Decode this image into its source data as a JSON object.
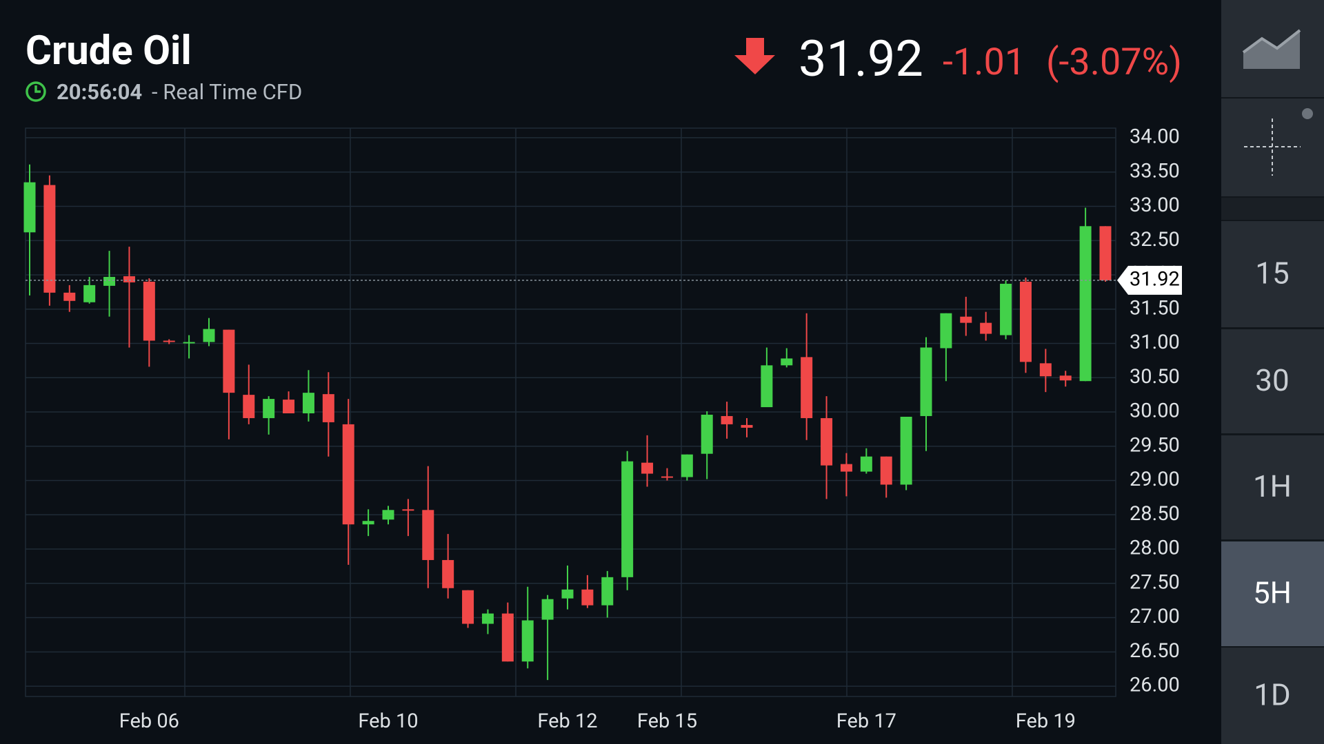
{
  "header": {
    "title": "Crude Oil",
    "time": "20:56:04",
    "source": "- Real Time CFD",
    "change": "-1.01",
    "change_percent": "(-3.07%)"
  },
  "sidebar": {
    "intervals": [
      "15",
      "30",
      "1H",
      "5H",
      "1D"
    ],
    "selected_index": 3
  },
  "chart_data": {
    "type": "candlestick",
    "categories": [
      null,
      null,
      null,
      null,
      null,
      null,
      "Feb 06",
      null,
      null,
      null,
      null,
      null,
      null,
      null,
      null,
      null,
      null,
      null,
      "Feb 10",
      null,
      null,
      null,
      null,
      null,
      null,
      null,
      null,
      "Feb 12",
      null,
      null,
      null,
      null,
      "Feb 15",
      null,
      null,
      null,
      null,
      null,
      null,
      null,
      null,
      null,
      "Feb 17",
      null,
      null,
      null,
      null,
      null,
      null,
      null,
      null,
      "Feb 19",
      null,
      null,
      null
    ],
    "open": [
      32.62,
      33.31,
      31.74,
      31.6,
      31.84,
      31.98,
      31.9,
      31.04,
      31.01,
      31.02,
      31.2,
      30.25,
      29.91,
      30.18,
      29.98,
      30.26,
      29.82,
      28.36,
      28.43,
      28.58,
      28.57,
      27.84,
      27.4,
      26.91,
      27.06,
      26.36,
      26.97,
      27.28,
      27.41,
      27.18,
      27.59,
      29.26,
      29.06,
      29.05,
      29.39,
      29.94,
      29.81,
      30.07,
      30.68,
      30.8,
      29.91,
      29.24,
      29.13,
      29.35,
      28.94,
      29.94,
      30.93,
      31.39,
      31.3,
      31.12,
      31.9,
      30.71,
      30.53,
      30.45,
      32.71
    ],
    "high": [
      33.61,
      33.45,
      31.85,
      31.97,
      32.35,
      32.41,
      31.95,
      31.06,
      31.12,
      31.37,
      31.2,
      30.69,
      30.23,
      30.3,
      30.61,
      30.58,
      30.19,
      28.58,
      28.63,
      28.73,
      29.21,
      28.22,
      27.4,
      27.12,
      27.22,
      27.45,
      27.33,
      27.76,
      27.62,
      27.68,
      29.43,
      29.66,
      29.18,
      29.38,
      30.01,
      30.15,
      29.91,
      30.94,
      30.93,
      31.44,
      30.23,
      29.4,
      29.47,
      29.35,
      29.93,
      31.09,
      31.44,
      31.68,
      31.46,
      31.92,
      31.96,
      30.92,
      30.6,
      32.98,
      32.71
    ],
    "low": [
      31.7,
      31.55,
      31.46,
      31.58,
      31.39,
      30.94,
      30.66,
      30.99,
      30.78,
      30.96,
      29.6,
      29.82,
      29.67,
      29.98,
      29.86,
      29.35,
      27.77,
      28.19,
      28.36,
      28.19,
      27.43,
      27.28,
      26.85,
      26.76,
      26.36,
      26.26,
      26.09,
      27.12,
      27.14,
      27.0,
      27.4,
      28.91,
      29.0,
      29.0,
      29.02,
      29.61,
      29.63,
      30.07,
      30.65,
      29.59,
      28.73,
      28.77,
      29.1,
      28.75,
      28.86,
      29.43,
      30.45,
      31.11,
      31.04,
      31.06,
      30.57,
      30.29,
      30.37,
      30.45,
      31.9
    ],
    "close": [
      33.35,
      31.74,
      31.62,
      31.85,
      31.97,
      31.89,
      31.04,
      31.02,
      31.02,
      31.21,
      30.28,
      29.91,
      30.19,
      29.98,
      30.28,
      29.85,
      28.36,
      28.41,
      28.57,
      28.57,
      27.84,
      27.43,
      26.91,
      27.06,
      26.36,
      26.96,
      27.27,
      27.41,
      27.18,
      27.59,
      29.28,
      29.1,
      29.04,
      29.38,
      29.96,
      29.82,
      29.77,
      30.68,
      30.78,
      29.91,
      29.22,
      29.13,
      29.35,
      28.94,
      29.93,
      30.94,
      31.44,
      31.3,
      31.14,
      31.87,
      30.73,
      30.52,
      30.46,
      32.71,
      31.92
    ],
    "current_price": 31.92,
    "up_color": "#43d14a",
    "down_color": "#f04848",
    "ylim": [
      25.85,
      34.14
    ],
    "yticks": [
      {
        "value": 26,
        "label": "26.00"
      },
      {
        "value": 26.5,
        "label": "26.50"
      },
      {
        "value": 27,
        "label": "27.00"
      },
      {
        "value": 27.5,
        "label": "27.50"
      },
      {
        "value": 28,
        "label": "28.00"
      },
      {
        "value": 28.5,
        "label": "28.50"
      },
      {
        "value": 29,
        "label": "29.00"
      },
      {
        "value": 29.5,
        "label": "29.50"
      },
      {
        "value": 30,
        "label": "30.00"
      },
      {
        "value": 30.5,
        "label": "30.50"
      },
      {
        "value": 31,
        "label": "31.00"
      },
      {
        "value": 31.5,
        "label": "31.50"
      },
      {
        "value": 32,
        "label": "32.00"
      },
      {
        "value": 32.5,
        "label": "32.50"
      },
      {
        "value": 33,
        "label": "33.00"
      },
      {
        "value": 33.5,
        "label": "33.50"
      },
      {
        "value": 34,
        "label": "34.00"
      }
    ],
    "grid": true
  }
}
